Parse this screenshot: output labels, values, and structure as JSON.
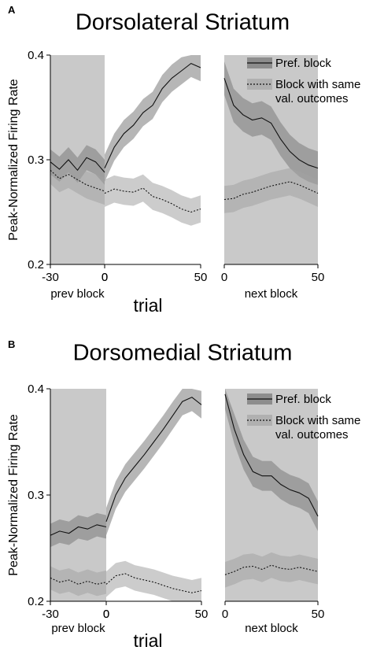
{
  "chart_data": [
    {
      "type": "line",
      "panel_label": "A",
      "title": "Dorsolateral Striatum",
      "ylabel": "Peak-Normalized Firing Rate",
      "xlabel": "trial",
      "ylim": [
        0.2,
        0.4
      ],
      "yticks": [
        "0.2",
        "0.3",
        "0.4"
      ],
      "segments": [
        {
          "label": "prev block",
          "xlim": [
            -30,
            0
          ],
          "ticks": [
            "-30",
            "0"
          ],
          "shaded": true
        },
        {
          "label": "",
          "xlim": [
            0,
            50
          ],
          "ticks": [
            "0",
            "50"
          ],
          "shaded": false
        },
        {
          "label": "next block",
          "xlim": [
            0,
            50
          ],
          "ticks": [
            "0",
            "50"
          ],
          "shaded": true
        }
      ],
      "legend": {
        "position": "top-right",
        "entries": [
          "Pref. block",
          "Block with same\nval. outcomes"
        ]
      },
      "series": [
        {
          "name": "Pref. block",
          "style": "solid",
          "segments": [
            {
              "x": [
                -30,
                -25,
                -20,
                -15,
                -10,
                -5,
                0
              ],
              "y": [
                0.298,
                0.291,
                0.3,
                0.29,
                0.302,
                0.298,
                0.288
              ],
              "sem": 0.012
            },
            {
              "x": [
                0,
                5,
                10,
                15,
                20,
                25,
                30,
                35,
                40,
                45,
                50
              ],
              "y": [
                0.292,
                0.312,
                0.325,
                0.333,
                0.345,
                0.352,
                0.368,
                0.378,
                0.385,
                0.392,
                0.388
              ],
              "sem": 0.013
            },
            {
              "x": [
                0,
                5,
                10,
                15,
                20,
                25,
                30,
                35,
                40,
                45,
                50
              ],
              "y": [
                0.378,
                0.352,
                0.343,
                0.338,
                0.34,
                0.335,
                0.32,
                0.308,
                0.3,
                0.295,
                0.292
              ],
              "sem": 0.016
            }
          ]
        },
        {
          "name": "Block with same\nval. outcomes",
          "style": "dotted",
          "segments": [
            {
              "x": [
                -30,
                -25,
                -20,
                -15,
                -10,
                -5,
                0
              ],
              "y": [
                0.29,
                0.282,
                0.286,
                0.281,
                0.276,
                0.273,
                0.27
              ],
              "sem": 0.013
            },
            {
              "x": [
                0,
                5,
                10,
                15,
                20,
                25,
                30,
                35,
                40,
                45,
                50
              ],
              "y": [
                0.268,
                0.272,
                0.27,
                0.269,
                0.273,
                0.265,
                0.262,
                0.258,
                0.253,
                0.25,
                0.253
              ],
              "sem": 0.013
            },
            {
              "x": [
                0,
                5,
                10,
                15,
                20,
                25,
                30,
                35,
                40,
                45,
                50
              ],
              "y": [
                0.262,
                0.263,
                0.267,
                0.269,
                0.272,
                0.275,
                0.277,
                0.279,
                0.276,
                0.272,
                0.268
              ],
              "sem": 0.013
            }
          ]
        }
      ]
    },
    {
      "type": "line",
      "panel_label": "B",
      "title": "Dorsomedial Striatum",
      "ylabel": "Peak-Normalized Firing Rate",
      "xlabel": "trial",
      "ylim": [
        0.2,
        0.4
      ],
      "yticks": [
        "0.2",
        "0.3",
        "0.4"
      ],
      "segments": [
        {
          "label": "prev block",
          "xlim": [
            -30,
            0
          ],
          "ticks": [
            "-30",
            "0"
          ],
          "shaded": true
        },
        {
          "label": "",
          "xlim": [
            0,
            50
          ],
          "ticks": [
            "0",
            "50"
          ],
          "shaded": false
        },
        {
          "label": "next block",
          "xlim": [
            0,
            50
          ],
          "ticks": [
            "0",
            "50"
          ],
          "shaded": true
        }
      ],
      "legend": {
        "position": "top-right",
        "entries": [
          "Pref. block",
          "Block with same\nval. outcomes"
        ]
      },
      "series": [
        {
          "name": "Pref. block",
          "style": "solid",
          "segments": [
            {
              "x": [
                -30,
                -25,
                -20,
                -15,
                -10,
                -5,
                0
              ],
              "y": [
                0.262,
                0.266,
                0.264,
                0.27,
                0.268,
                0.272,
                0.27
              ],
              "sem": 0.011
            },
            {
              "x": [
                0,
                5,
                10,
                15,
                20,
                25,
                30,
                35,
                40,
                45,
                50
              ],
              "y": [
                0.275,
                0.3,
                0.316,
                0.327,
                0.338,
                0.35,
                0.362,
                0.375,
                0.388,
                0.392,
                0.385
              ],
              "sem": 0.013
            },
            {
              "x": [
                0,
                5,
                10,
                15,
                20,
                25,
                30,
                35,
                40,
                45,
                50
              ],
              "y": [
                0.395,
                0.362,
                0.338,
                0.322,
                0.318,
                0.318,
                0.31,
                0.305,
                0.302,
                0.297,
                0.28
              ],
              "sem": 0.014
            }
          ]
        },
        {
          "name": "Block with same\nval. outcomes",
          "style": "dotted",
          "segments": [
            {
              "x": [
                -30,
                -25,
                -20,
                -15,
                -10,
                -5,
                0
              ],
              "y": [
                0.222,
                0.218,
                0.22,
                0.216,
                0.219,
                0.216,
                0.218
              ],
              "sem": 0.011
            },
            {
              "x": [
                0,
                5,
                10,
                15,
                20,
                25,
                30,
                35,
                40,
                45,
                50
              ],
              "y": [
                0.216,
                0.224,
                0.226,
                0.222,
                0.22,
                0.218,
                0.215,
                0.212,
                0.21,
                0.208,
                0.21
              ],
              "sem": 0.012
            },
            {
              "x": [
                0,
                5,
                10,
                15,
                20,
                25,
                30,
                35,
                40,
                45,
                50
              ],
              "y": [
                0.225,
                0.228,
                0.232,
                0.233,
                0.23,
                0.234,
                0.231,
                0.23,
                0.232,
                0.23,
                0.228
              ],
              "sem": 0.012
            }
          ]
        }
      ]
    }
  ]
}
